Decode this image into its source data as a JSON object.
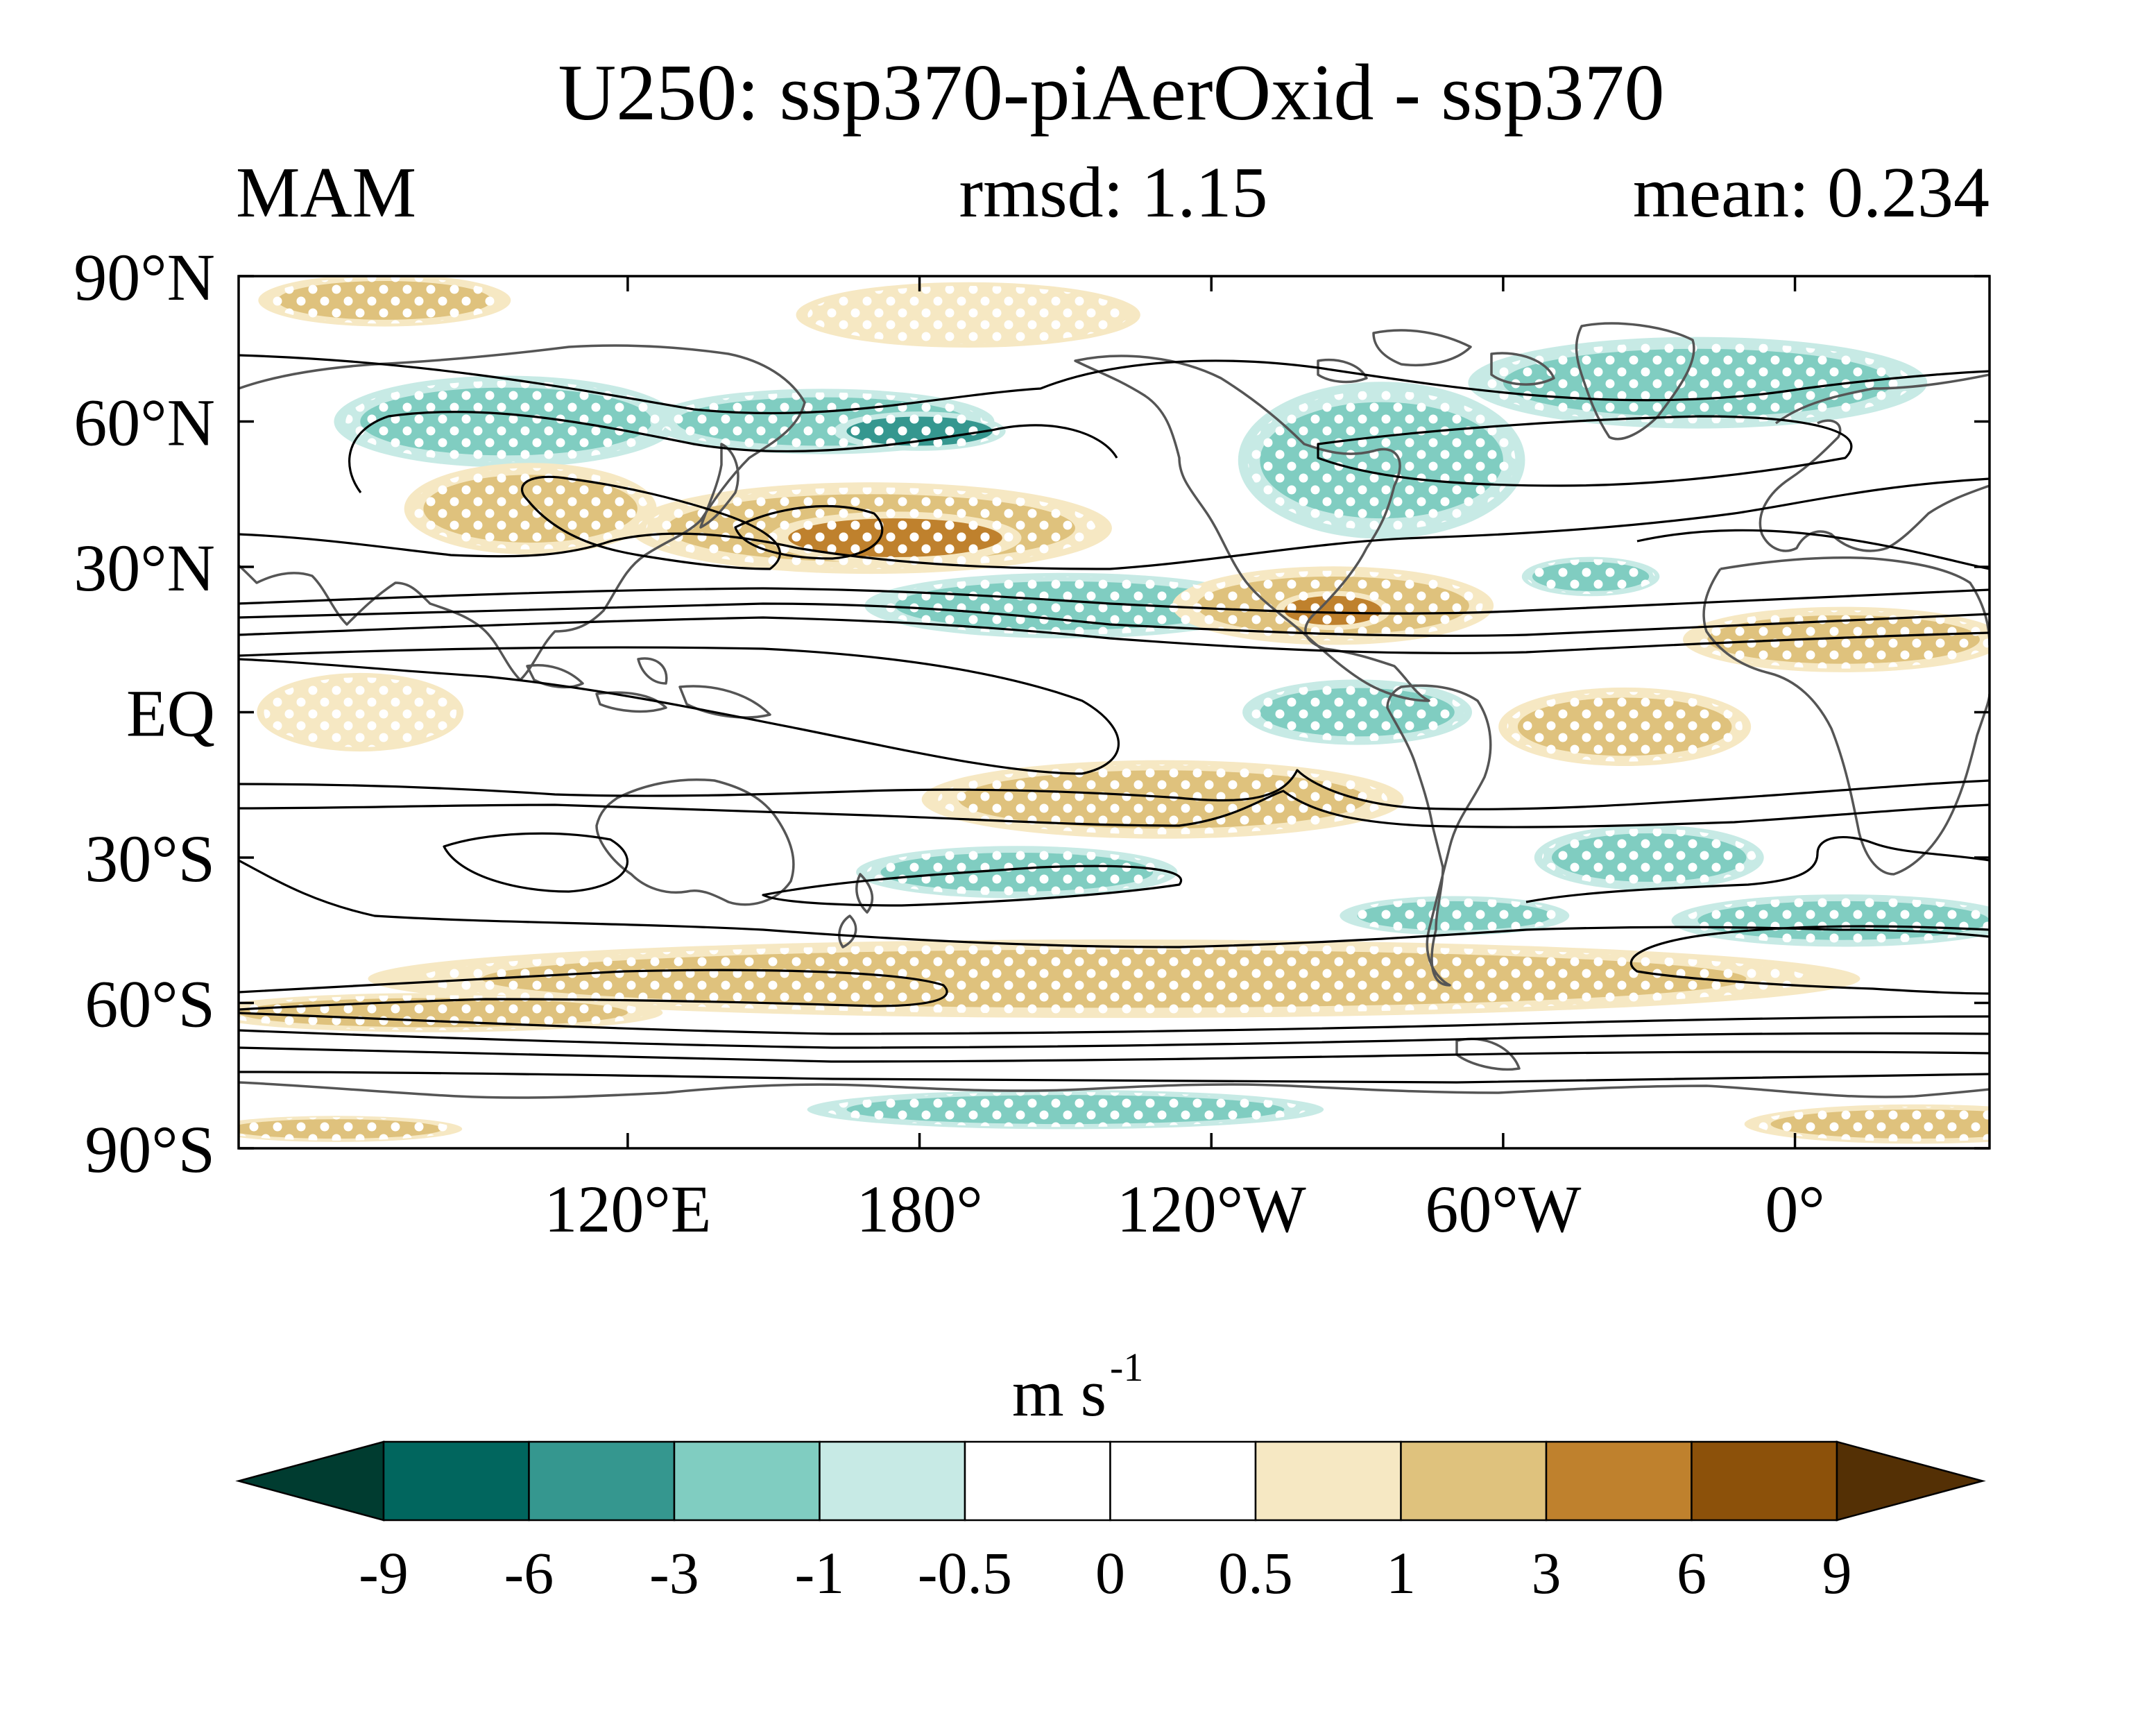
{
  "title": "U250: ssp370-piAerOxid - ssp370",
  "subtitle": {
    "left": "MAM",
    "center": "rmsd: 1.15",
    "right": "mean: 0.234"
  },
  "map": {
    "lat_ticks": [
      {
        "lat": 90,
        "label": "90°N"
      },
      {
        "lat": 60,
        "label": "60°N"
      },
      {
        "lat": 30,
        "label": "30°N"
      },
      {
        "lat": 0,
        "label": "EQ"
      },
      {
        "lat": -30,
        "label": "30°S"
      },
      {
        "lat": -60,
        "label": "60°S"
      },
      {
        "lat": -90,
        "label": "90°S"
      }
    ],
    "lon_ticks": [
      {
        "lon": 120,
        "label": "120°E"
      },
      {
        "lon": 180,
        "label": "180°"
      },
      {
        "lon": 240,
        "label": "120°W"
      },
      {
        "lon": 300,
        "label": "60°W"
      },
      {
        "lon": 360,
        "label": "0°"
      }
    ],
    "lon_range": [
      40,
      400
    ],
    "lat_range": [
      -90,
      90
    ],
    "coastline_color": "#555555",
    "contour_color": "#000000",
    "stippling": "white dots over shaded regions"
  },
  "colorbar": {
    "unit": "m s",
    "unit_exponent": "-1",
    "levels": [
      "-9",
      "-6",
      "-3",
      "-1",
      "-0.5",
      "0",
      "0.5",
      "1",
      "3",
      "6",
      "9"
    ],
    "colors": [
      "#003c30",
      "#01665e",
      "#35978f",
      "#80cdc1",
      "#c7eae5",
      "#ffffff",
      "#ffffff",
      "#f6e8c3",
      "#dfc27d",
      "#bf812d",
      "#8c510a",
      "#543005"
    ]
  },
  "anomaly_regions": [
    {
      "name": "arctic-east",
      "lon": 70,
      "lat": 85,
      "rx": 22,
      "ry": 4,
      "value": 1.2
    },
    {
      "name": "arctic-pac",
      "lon": 190,
      "lat": 82,
      "rx": 30,
      "ry": 5,
      "value": 0.7
    },
    {
      "name": "subpolar-asia-low",
      "lon": 95,
      "lat": 60,
      "rx": 30,
      "ry": 7,
      "value": -2.0
    },
    {
      "name": "np-jet-north",
      "lon": 160,
      "lat": 60,
      "rx": 30,
      "ry": 5,
      "value": -2.5
    },
    {
      "name": "np-jet-core",
      "lon": 180,
      "lat": 58,
      "rx": 15,
      "ry": 3,
      "value": -4.0
    },
    {
      "name": "hudson",
      "lon": 275,
      "lat": 52,
      "rx": 25,
      "ry": 12,
      "value": -2.0
    },
    {
      "name": "n-atlantic",
      "lon": 340,
      "lat": 68,
      "rx": 40,
      "ry": 7,
      "value": -1.8
    },
    {
      "name": "w-asia-jet",
      "lon": 100,
      "lat": 42,
      "rx": 22,
      "ry": 7,
      "value": 1.5
    },
    {
      "name": "np-30n",
      "lon": 170,
      "lat": 38,
      "rx": 42,
      "ry": 7,
      "value": 2.0
    },
    {
      "name": "np-30n-core",
      "lon": 175,
      "lat": 36,
      "rx": 22,
      "ry": 4,
      "value": 3.5
    },
    {
      "name": "subtrop-pac-neg",
      "lon": 210,
      "lat": 22,
      "rx": 35,
      "ry": 5,
      "value": -1.8
    },
    {
      "name": "mexico-gulf",
      "lon": 265,
      "lat": 22,
      "rx": 28,
      "ry": 6,
      "value": 2.0
    },
    {
      "name": "gulf-core",
      "lon": 265,
      "lat": 21,
      "rx": 10,
      "ry": 3,
      "value": 4.0
    },
    {
      "name": "n-africa",
      "lon": 370,
      "lat": 15,
      "rx": 28,
      "ry": 5,
      "value": 1.3
    },
    {
      "name": "atl-neg-north",
      "lon": 318,
      "lat": 28,
      "rx": 12,
      "ry": 3,
      "value": -1.5
    },
    {
      "name": "e-pac-eq",
      "lon": 270,
      "lat": 0,
      "rx": 20,
      "ry": 5,
      "value": -1.8
    },
    {
      "name": "s-america-eq",
      "lon": 325,
      "lat": -3,
      "rx": 22,
      "ry": 6,
      "value": 1.5
    },
    {
      "name": "indian-eq",
      "lon": 65,
      "lat": 0,
      "rx": 18,
      "ry": 6,
      "value": 0.7
    },
    {
      "name": "sp-20s",
      "lon": 230,
      "lat": -18,
      "rx": 42,
      "ry": 6,
      "value": 1.5
    },
    {
      "name": "sp-35s",
      "lon": 200,
      "lat": -33,
      "rx": 28,
      "ry": 4,
      "value": -1.8
    },
    {
      "name": "s-atl-30s",
      "lon": 330,
      "lat": -30,
      "rx": 20,
      "ry": 5,
      "value": -1.8
    },
    {
      "name": "s-atl-40s",
      "lon": 370,
      "lat": -43,
      "rx": 30,
      "ry": 4,
      "value": -1.8
    },
    {
      "name": "south-mid",
      "lon": 290,
      "lat": -42,
      "rx": 20,
      "ry": 3,
      "value": -1.5
    },
    {
      "name": "sh-jet-band",
      "lon": 220,
      "lat": -55,
      "rx": 130,
      "ry": 6,
      "value": 1.5
    },
    {
      "name": "sh-jet-band-w",
      "lon": 80,
      "lat": -62,
      "rx": 40,
      "ry": 3,
      "value": 1.2
    },
    {
      "name": "antarctic-neg",
      "lon": 210,
      "lat": -82,
      "rx": 45,
      "ry": 3,
      "value": -2.0
    },
    {
      "name": "antarctic-pos",
      "lon": 385,
      "lat": -85,
      "rx": 30,
      "ry": 3,
      "value": 1.2
    },
    {
      "name": "antarctic-pos-w",
      "lon": 60,
      "lat": -86,
      "rx": 22,
      "ry": 2,
      "value": 1.0
    }
  ]
}
